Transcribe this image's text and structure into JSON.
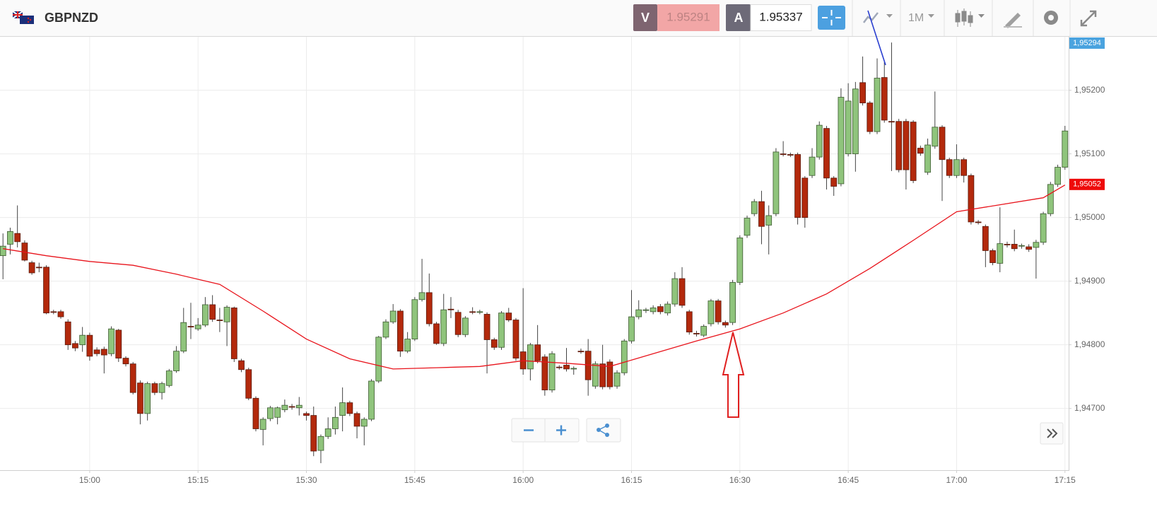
{
  "toolbar": {
    "symbol": "GBPNZD",
    "bid_label": "V",
    "bid": 1.95291,
    "ask_label": "A",
    "ask": 1.95337,
    "timeframe": "1M"
  },
  "chart_data": {
    "type": "candlestick",
    "up_color": "#8fc47c",
    "down_color": "#b3290c",
    "xlim": [
      "14:47",
      "17:16"
    ],
    "xticks": [
      "15:00",
      "15:15",
      "15:30",
      "15:45",
      "16:00",
      "16:15",
      "16:30",
      "16:45",
      "17:00",
      "17:15"
    ],
    "ylim": [
      1.94603,
      1.95284
    ],
    "yticks": [
      {
        "value": 1.947,
        "label": "1,94700"
      },
      {
        "value": 1.948,
        "label": "1,94800"
      },
      {
        "value": 1.949,
        "label": "1,94900"
      },
      {
        "value": 1.95,
        "label": "1,95000"
      },
      {
        "value": 1.951,
        "label": "1,95100"
      },
      {
        "value": 1.952,
        "label": "1,95200"
      }
    ],
    "grid": true,
    "x": [
      "14:48",
      "14:49",
      "14:50",
      "14:51",
      "14:52",
      "14:53",
      "14:54",
      "14:55",
      "14:56",
      "14:57",
      "14:58",
      "14:59",
      "15:00",
      "15:01",
      "15:02",
      "15:03",
      "15:04",
      "15:05",
      "15:06",
      "15:07",
      "15:08",
      "15:09",
      "15:10",
      "15:11",
      "15:12",
      "15:13",
      "15:14",
      "15:15",
      "15:16",
      "15:17",
      "15:18",
      "15:19",
      "15:20",
      "15:21",
      "15:22",
      "15:23",
      "15:24",
      "15:25",
      "15:26",
      "15:27",
      "15:28",
      "15:29",
      "15:30",
      "15:31",
      "15:32",
      "15:33",
      "15:34",
      "15:35",
      "15:36",
      "15:37",
      "15:38",
      "15:39",
      "15:40",
      "15:41",
      "15:42",
      "15:43",
      "15:44",
      "15:45",
      "15:46",
      "15:47",
      "15:48",
      "15:49",
      "15:50",
      "15:51",
      "15:52",
      "15:53",
      "15:54",
      "15:55",
      "15:56",
      "15:57",
      "15:58",
      "15:59",
      "16:00",
      "16:01",
      "16:02",
      "16:03",
      "16:04",
      "16:05",
      "16:06",
      "16:07",
      "16:08",
      "16:09",
      "16:10",
      "16:11",
      "16:12",
      "16:13",
      "16:14",
      "16:15",
      "16:16",
      "16:17",
      "16:18",
      "16:19",
      "16:20",
      "16:21",
      "16:22",
      "16:23",
      "16:24",
      "16:25",
      "16:26",
      "16:27",
      "16:28",
      "16:29",
      "16:30",
      "16:31",
      "16:32",
      "16:33",
      "16:34",
      "16:35",
      "16:36",
      "16:37",
      "16:38",
      "16:39",
      "16:40",
      "16:41",
      "16:42",
      "16:43",
      "16:44",
      "16:45",
      "16:46",
      "16:47",
      "16:48",
      "16:49",
      "16:50",
      "16:51",
      "16:52",
      "16:53",
      "16:54",
      "16:55",
      "16:56",
      "16:57",
      "16:58",
      "16:59",
      "17:00",
      "17:01",
      "17:02",
      "17:03",
      "17:04",
      "17:05",
      "17:06",
      "17:07",
      "17:08",
      "17:09",
      "17:10",
      "17:11",
      "17:12",
      "17:13",
      "17:14",
      "17:15"
    ],
    "open": [
      1.9494,
      1.94958,
      1.94975,
      1.9496,
      1.94929,
      1.94922,
      1.94922,
      1.94852,
      1.94852,
      1.94836,
      1.94802,
      1.948,
      1.94815,
      1.94792,
      1.94793,
      1.94786,
      1.94823,
      1.94779,
      1.9477,
      1.9474,
      1.94692,
      1.94739,
      1.94725,
      1.94736,
      1.94759,
      1.9479,
      1.94829,
      1.94825,
      1.94831,
      1.94863,
      1.94839,
      1.94836,
      1.94858,
      1.94775,
      1.94761,
      1.94716,
      1.94667,
      1.94684,
      1.94686,
      1.94698,
      1.94703,
      1.94701,
      1.94692,
      1.94689,
      1.94634,
      1.94656,
      1.94668,
      1.94689,
      1.94709,
      1.94692,
      1.94672,
      1.94683,
      1.94743,
      1.94812,
      1.94836,
      1.94853,
      1.9479,
      1.94809,
      1.94871,
      1.94882,
      1.94833,
      1.94802,
      1.94856,
      1.94851,
      1.94816,
      1.94852,
      1.94851,
      1.94848,
      1.94808,
      1.94796,
      1.9485,
      1.94839,
      1.94789,
      1.94762,
      1.948,
      1.94781,
      1.94729,
      1.94765,
      1.94768,
      1.94762,
      1.9479,
      1.9479,
      1.94735,
      1.9477,
      1.94773,
      1.94735,
      1.94756,
      1.94806,
      1.94844,
      1.94854,
      1.94852,
      1.9486,
      1.9485,
      1.94864,
      1.94904,
      1.94852,
      1.94818,
      1.94815,
      1.94833,
      1.94869,
      1.94835,
      1.94835,
      1.94898,
      1.94972,
      1.95006,
      1.95025,
      1.94988,
      1.95006,
      1.951,
      1.95099,
      1.95099,
      1.95062,
      1.95066,
      1.95095,
      1.9514,
      1.95062,
      1.95053,
      1.951,
      1.951,
      1.95212,
      1.9518,
      1.95135,
      1.9522,
      1.95151,
      1.95151,
      1.95151,
      1.9515,
      1.95109,
      1.95071,
      1.95112,
      1.95142,
      1.95091,
      1.95066,
      1.95091,
      1.95066,
      1.94993,
      1.94986,
      1.94948,
      1.94928,
      1.94958,
      1.94958,
      1.94955,
      1.94954,
      1.94953,
      1.94961,
      1.95006,
      1.95052,
      1.95079
    ],
    "high": [
      1.94975,
      1.94984,
      1.95019,
      1.94964,
      1.94932,
      1.94929,
      1.94925,
      1.94855,
      1.94855,
      1.9484,
      1.94806,
      1.94828,
      1.94819,
      1.94796,
      1.94797,
      1.94829,
      1.94825,
      1.94782,
      1.94773,
      1.94744,
      1.94742,
      1.94742,
      1.94742,
      1.94762,
      1.94798,
      1.94858,
      1.94866,
      1.94842,
      1.94875,
      1.94878,
      1.94858,
      1.94862,
      1.9486,
      1.94778,
      1.94764,
      1.94719,
      1.94686,
      1.94704,
      1.94703,
      1.94714,
      1.94707,
      1.94718,
      1.94695,
      1.94703,
      1.94659,
      1.94686,
      1.94703,
      1.94733,
      1.94712,
      1.94695,
      1.94686,
      1.94746,
      1.94814,
      1.9484,
      1.94864,
      1.94856,
      1.9482,
      1.94875,
      1.94935,
      1.94912,
      1.94836,
      1.9488,
      1.94875,
      1.94855,
      1.94845,
      1.94859,
      1.94855,
      1.94851,
      1.94811,
      1.94853,
      1.94858,
      1.94842,
      1.94889,
      1.94803,
      1.94831,
      1.94785,
      1.9479,
      1.94768,
      1.94795,
      1.94766,
      1.94794,
      1.94809,
      1.94774,
      1.948,
      1.94777,
      1.9476,
      1.94809,
      1.94886,
      1.9487,
      1.94858,
      1.94862,
      1.94864,
      1.94868,
      1.94914,
      1.94922,
      1.94855,
      1.94822,
      1.94832,
      1.94872,
      1.94872,
      1.94838,
      1.94902,
      1.94972,
      1.95003,
      1.95029,
      1.95042,
      1.95019,
      1.95109,
      1.9512,
      1.95102,
      1.95102,
      1.95065,
      1.95109,
      1.95151,
      1.95144,
      1.95065,
      1.95203,
      1.95211,
      1.95213,
      1.95253,
      1.95183,
      1.9525,
      1.95244,
      1.95275,
      1.95155,
      1.95155,
      1.95153,
      1.95113,
      1.95124,
      1.95198,
      1.95145,
      1.95094,
      1.95115,
      1.95094,
      1.95069,
      1.94996,
      1.94989,
      1.94951,
      1.95016,
      1.94962,
      1.94981,
      1.94959,
      1.94958,
      1.94965,
      1.95009,
      1.95056,
      1.95083,
      1.95144
    ],
    "low": [
      1.94903,
      1.94942,
      1.94953,
      1.94931,
      1.9491,
      1.94914,
      1.94848,
      1.94848,
      1.94841,
      1.94792,
      1.9479,
      1.94789,
      1.94775,
      1.94782,
      1.94755,
      1.94782,
      1.94773,
      1.94766,
      1.94722,
      1.94675,
      1.94681,
      1.94721,
      1.94714,
      1.94733,
      1.94756,
      1.94787,
      1.94809,
      1.94822,
      1.94828,
      1.94836,
      1.9482,
      1.94798,
      1.94773,
      1.94757,
      1.94713,
      1.94664,
      1.94642,
      1.9468,
      1.94675,
      1.94694,
      1.94698,
      1.94689,
      1.94681,
      1.94625,
      1.94614,
      1.94652,
      1.94659,
      1.94664,
      1.94688,
      1.94653,
      1.94642,
      1.9468,
      1.9474,
      1.94809,
      1.94833,
      1.94781,
      1.94787,
      1.94806,
      1.94868,
      1.94829,
      1.948,
      1.94798,
      1.94842,
      1.94812,
      1.94812,
      1.94848,
      1.94848,
      1.94755,
      1.94792,
      1.94792,
      1.94836,
      1.94775,
      1.94753,
      1.94744,
      1.94771,
      1.9472,
      1.94725,
      1.94761,
      1.94758,
      1.94753,
      1.94786,
      1.9472,
      1.94731,
      1.9473,
      1.9473,
      1.94731,
      1.94752,
      1.94802,
      1.9484,
      1.9485,
      1.94848,
      1.94848,
      1.94846,
      1.9486,
      1.94858,
      1.94816,
      1.94813,
      1.94812,
      1.94829,
      1.94832,
      1.94827,
      1.94831,
      1.94894,
      1.94968,
      1.95002,
      1.94958,
      1.94942,
      1.95002,
      1.95096,
      1.95095,
      1.94989,
      1.94984,
      1.95062,
      1.95091,
      1.95044,
      1.95034,
      1.95049,
      1.95096,
      1.95072,
      1.95176,
      1.95131,
      1.95131,
      1.95149,
      1.95073,
      1.95071,
      1.95044,
      1.95054,
      1.95097,
      1.95067,
      1.95108,
      1.95026,
      1.95062,
      1.95062,
      1.95055,
      1.94989,
      1.94989,
      1.94922,
      1.94925,
      1.94914,
      1.94953,
      1.94947,
      1.94951,
      1.94946,
      1.94904,
      1.94957,
      1.95002,
      1.95048,
      1.95075
    ],
    "close": [
      1.94955,
      1.94978,
      1.94962,
      1.94933,
      1.94913,
      1.94921,
      1.9485,
      1.94851,
      1.94844,
      1.948,
      1.94795,
      1.94815,
      1.94782,
      1.94786,
      1.94784,
      1.94825,
      1.94779,
      1.9477,
      1.94725,
      1.94692,
      1.94739,
      1.94725,
      1.94739,
      1.94759,
      1.9479,
      1.94835,
      1.94828,
      1.94831,
      1.94863,
      1.9484,
      1.94838,
      1.94859,
      1.94778,
      1.94761,
      1.94716,
      1.94668,
      1.94683,
      1.94701,
      1.94701,
      1.94705,
      1.94702,
      1.94705,
      1.94689,
      1.94633,
      1.94656,
      1.94668,
      1.94686,
      1.94709,
      1.94692,
      1.94672,
      1.94683,
      1.94743,
      1.94812,
      1.94836,
      1.94853,
      1.9479,
      1.94809,
      1.94871,
      1.94882,
      1.94833,
      1.94802,
      1.94855,
      1.94855,
      1.94816,
      1.94842,
      1.94851,
      1.94852,
      1.94808,
      1.94796,
      1.9485,
      1.94839,
      1.94779,
      1.94762,
      1.948,
      1.94775,
      1.94729,
      1.94786,
      1.94764,
      1.94762,
      1.94763,
      1.94789,
      1.94745,
      1.9477,
      1.94734,
      1.94734,
      1.94756,
      1.94806,
      1.94844,
      1.94855,
      1.94855,
      1.94858,
      1.94852,
      1.94864,
      1.94904,
      1.94862,
      1.9482,
      1.94817,
      1.94829,
      1.94869,
      1.94836,
      1.94831,
      1.94898,
      1.94968,
      1.94999,
      1.95025,
      1.94986,
      1.95003,
      1.95103,
      1.95099,
      1.95098,
      1.95,
      1.95,
      1.95095,
      1.95145,
      1.95062,
      1.95049,
      1.95189,
      1.95183,
      1.95202,
      1.9518,
      1.95135,
      1.95219,
      1.95153,
      1.9515,
      1.95075,
      1.95075,
      1.95058,
      1.95101,
      1.95114,
      1.95142,
      1.95091,
      1.95066,
      1.95091,
      1.95066,
      1.94993,
      1.94992,
      1.94948,
      1.94929,
      1.94959,
      1.94957,
      1.94951,
      1.94956,
      1.9495,
      1.94961,
      1.95006,
      1.95052,
      1.95079,
      1.95136
    ],
    "moving_average": {
      "color": "#e8141c",
      "x": [
        "14:48",
        "14:54",
        "15:00",
        "15:06",
        "15:12",
        "15:18",
        "15:24",
        "15:30",
        "15:36",
        "15:42",
        "15:48",
        "15:54",
        "16:00",
        "16:06",
        "16:12",
        "16:18",
        "16:24",
        "16:30",
        "16:36",
        "16:42",
        "16:48",
        "16:54",
        "17:00",
        "17:06",
        "17:12",
        "17:15"
      ],
      "values": [
        1.94951,
        1.9494,
        1.94931,
        1.94925,
        1.94911,
        1.94895,
        1.94853,
        1.94809,
        1.94778,
        1.94762,
        1.94764,
        1.94766,
        1.94775,
        1.94771,
        1.94766,
        1.94786,
        1.94806,
        1.94825,
        1.9485,
        1.9488,
        1.9492,
        1.94964,
        1.95009,
        1.9502,
        1.95031,
        1.95051
      ]
    },
    "price_markers": [
      {
        "value": 1.95294,
        "label": "1,95294",
        "color": "#4aa3df"
      },
      {
        "value": 1.95052,
        "label": "1,95052",
        "color": "#ee0a0a"
      }
    ]
  }
}
